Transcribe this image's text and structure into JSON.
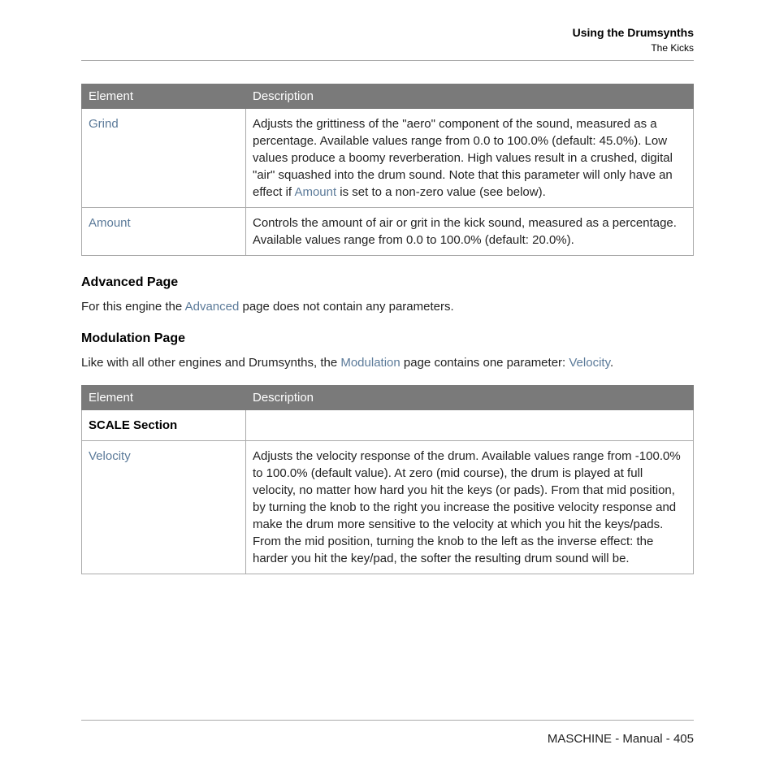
{
  "header": {
    "title": "Using the Drumsynths",
    "subtitle": "The Kicks"
  },
  "table1": {
    "head": {
      "c1": "Element",
      "c2": "Description"
    },
    "rows": [
      {
        "element": "Grind",
        "desc_pre": "Adjusts the grittiness of the \"aero\" component of the sound, measured as a percentage. Available values range from 0.0 to 100.0% (default: 45.0%). Low values produce a boomy reverberation. High values result in a crushed, digital \"air\" squashed into the drum sound. Note that this parameter will only have an effect if ",
        "desc_link": "Amount",
        "desc_post": " is set to a non-zero value (see below)."
      },
      {
        "element": "Amount",
        "desc": "Controls the amount of air or grit in the kick sound, measured as a percentage. Available values range from 0.0 to 100.0% (default: 20.0%)."
      }
    ]
  },
  "sections": {
    "advanced": {
      "title": "Advanced Page",
      "text_pre": "For this engine the ",
      "text_link": "Advanced",
      "text_post": " page does not contain any parameters."
    },
    "modulation": {
      "title": "Modulation Page",
      "text_pre": "Like with all other engines and Drumsynths, the ",
      "text_link1": "Modulation",
      "text_mid": " page contains one parameter: ",
      "text_link2": "Velocity",
      "text_post": "."
    }
  },
  "table2": {
    "head": {
      "c1": "Element",
      "c2": "Description"
    },
    "rows": [
      {
        "element": "SCALE Section",
        "desc": ""
      },
      {
        "element": "Velocity",
        "desc": "Adjusts the velocity response of the drum. Available values range from -100.0% to 100.0% (default value). At zero (mid course), the drum is played at full velocity, no matter how hard you hit the keys (or pads). From that mid position, by turning the knob to the right you increase the positive velocity response and make the drum more sensitive to the velocity at which you hit the keys/pads. From the mid position, turning the knob to the left as the inverse effect: the harder you hit the key/pad, the softer the resulting drum sound will be."
      }
    ]
  },
  "footer": {
    "product": "MASCHINE",
    "doc": "Manual",
    "page": "405"
  }
}
